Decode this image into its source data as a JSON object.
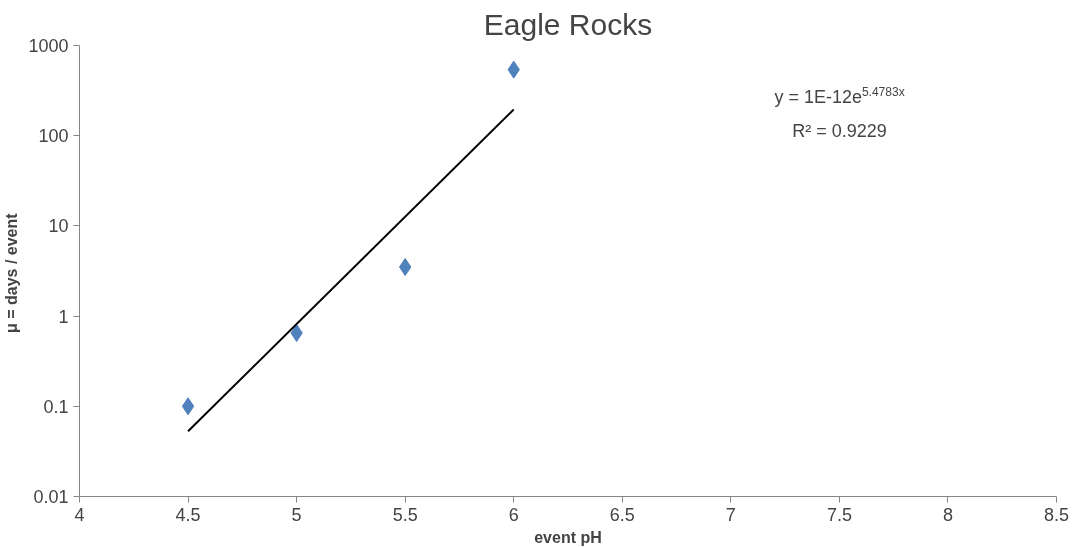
{
  "chart_data": {
    "type": "scatter",
    "title": "Eagle Rocks",
    "xlabel": "event pH",
    "ylabel": "μ = days  / event",
    "log": "y",
    "grid": false,
    "xlim": [
      4,
      8.5
    ],
    "xticks": [
      4,
      4.5,
      5,
      5.5,
      6,
      6.5,
      7,
      7.5,
      8,
      8.5
    ],
    "ylim": [
      0.01,
      1000
    ],
    "yticks": [
      0.01,
      0.1,
      1,
      10,
      100,
      1000
    ],
    "series": [
      {
        "marker": "diamond",
        "color": "#4f81bd",
        "x": [
          4.5,
          5,
          5.5,
          6
        ],
        "values": [
          0.1,
          0.65,
          3.5,
          540
        ]
      },
      {
        "type": "line",
        "color": "#000000",
        "x": [
          4.5,
          6
        ],
        "values": [
          0.053,
          195
        ]
      }
    ],
    "annotations": [
      "y = 1E-12e$^{5.4783x}$",
      "R² = 0.9229"
    ]
  }
}
